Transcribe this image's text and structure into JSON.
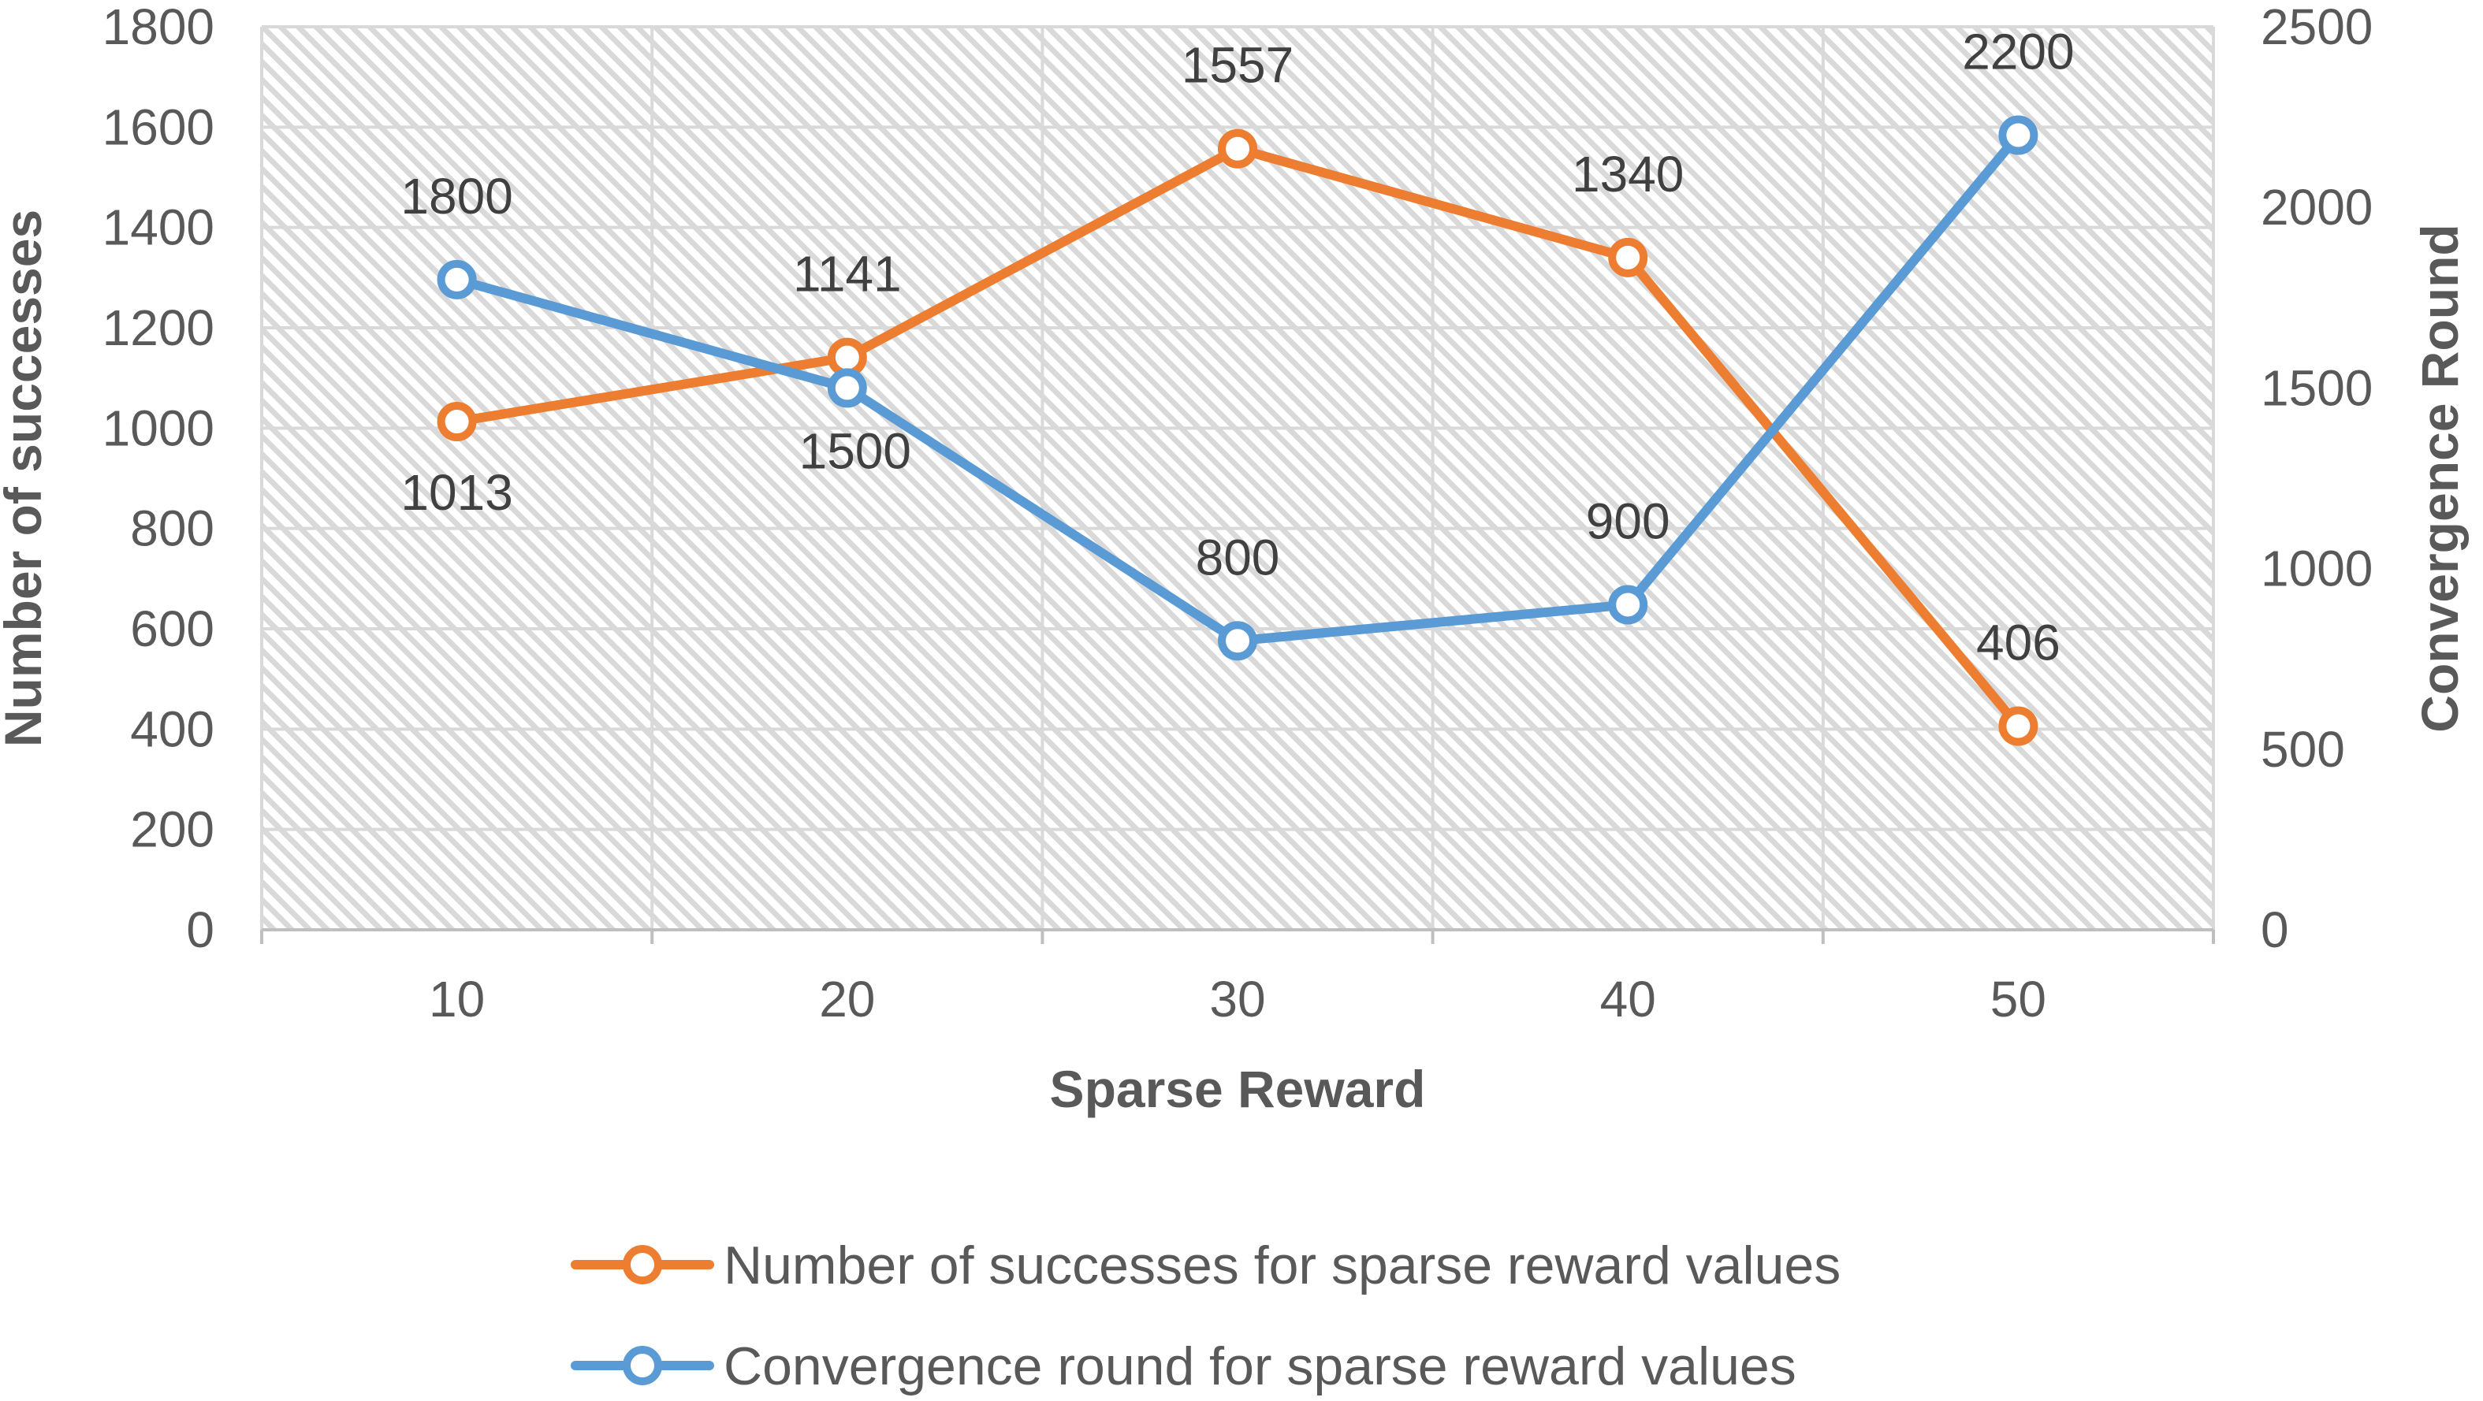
{
  "chart_data": {
    "type": "line",
    "x": [
      10,
      20,
      30,
      40,
      50
    ],
    "xlabel": "Sparse Reward",
    "ylabel": "Number of successes",
    "y2label": "Convergence Round",
    "ylim": [
      0,
      1800
    ],
    "y2lim": [
      0,
      2500
    ],
    "yticks": [
      0,
      200,
      400,
      600,
      800,
      1000,
      1200,
      1400,
      1600,
      1800
    ],
    "y2ticks": [
      0,
      500,
      1000,
      1500,
      2000,
      2500
    ],
    "grid": true,
    "plot_background": "diagonal hatch pattern",
    "legend_position": "bottom",
    "series": [
      {
        "name": "Number of successes for sparse reward values",
        "axis": "left",
        "color": "#ED7D31",
        "marker": "open-circle",
        "values": [
          1013,
          1141,
          1557,
          1340,
          406
        ],
        "labels": [
          "1013",
          "1141",
          "1557",
          "1340",
          "406"
        ]
      },
      {
        "name": "Convergence round for sparse reward values",
        "axis": "right",
        "color": "#5B9BD5",
        "marker": "open-circle",
        "values": [
          1800,
          1500,
          800,
          900,
          2200
        ],
        "labels": [
          "1800",
          "1500",
          "800",
          "900",
          "2200"
        ]
      }
    ]
  }
}
